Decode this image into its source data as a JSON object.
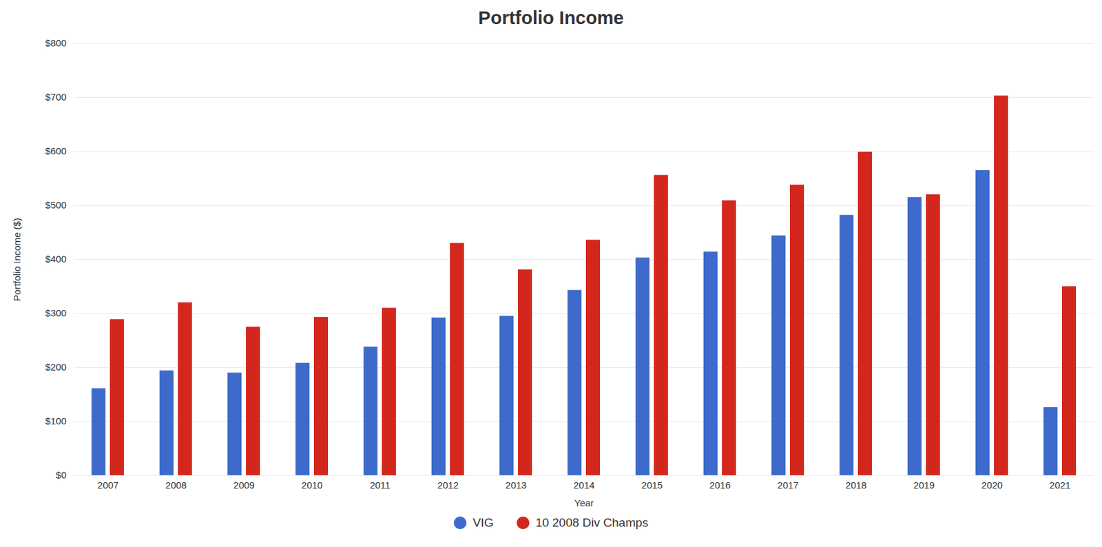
{
  "chart_data": {
    "type": "bar",
    "title": "Portfolio Income",
    "x_label": "Year",
    "y_label": "Portfolio Income ($)",
    "categories": [
      "2007",
      "2008",
      "2009",
      "2010",
      "2011",
      "2012",
      "2013",
      "2014",
      "2015",
      "2016",
      "2017",
      "2018",
      "2019",
      "2020",
      "2021"
    ],
    "series": [
      {
        "name": "VIG",
        "color": "#3e6bcb",
        "values": [
          161,
          194,
          190,
          208,
          238,
          292,
          295,
          343,
          403,
          414,
          444,
          482,
          515,
          565,
          126
        ]
      },
      {
        "name": "10 2008 Div Champs",
        "color": "#d3271d",
        "values": [
          289,
          320,
          275,
          293,
          310,
          430,
          381,
          436,
          556,
          509,
          538,
          599,
          520,
          703,
          350
        ]
      }
    ],
    "ylim": [
      0,
      800
    ],
    "yticks": [
      {
        "value": 0,
        "label": "$0"
      },
      {
        "value": 100,
        "label": "$100"
      },
      {
        "value": 200,
        "label": "$200"
      },
      {
        "value": 300,
        "label": "$300"
      },
      {
        "value": 400,
        "label": "$400"
      },
      {
        "value": 500,
        "label": "$500"
      },
      {
        "value": 600,
        "label": "$600"
      },
      {
        "value": 700,
        "label": "$700"
      },
      {
        "value": 800,
        "label": "$800"
      }
    ],
    "grid": true,
    "legend": "bottom"
  }
}
